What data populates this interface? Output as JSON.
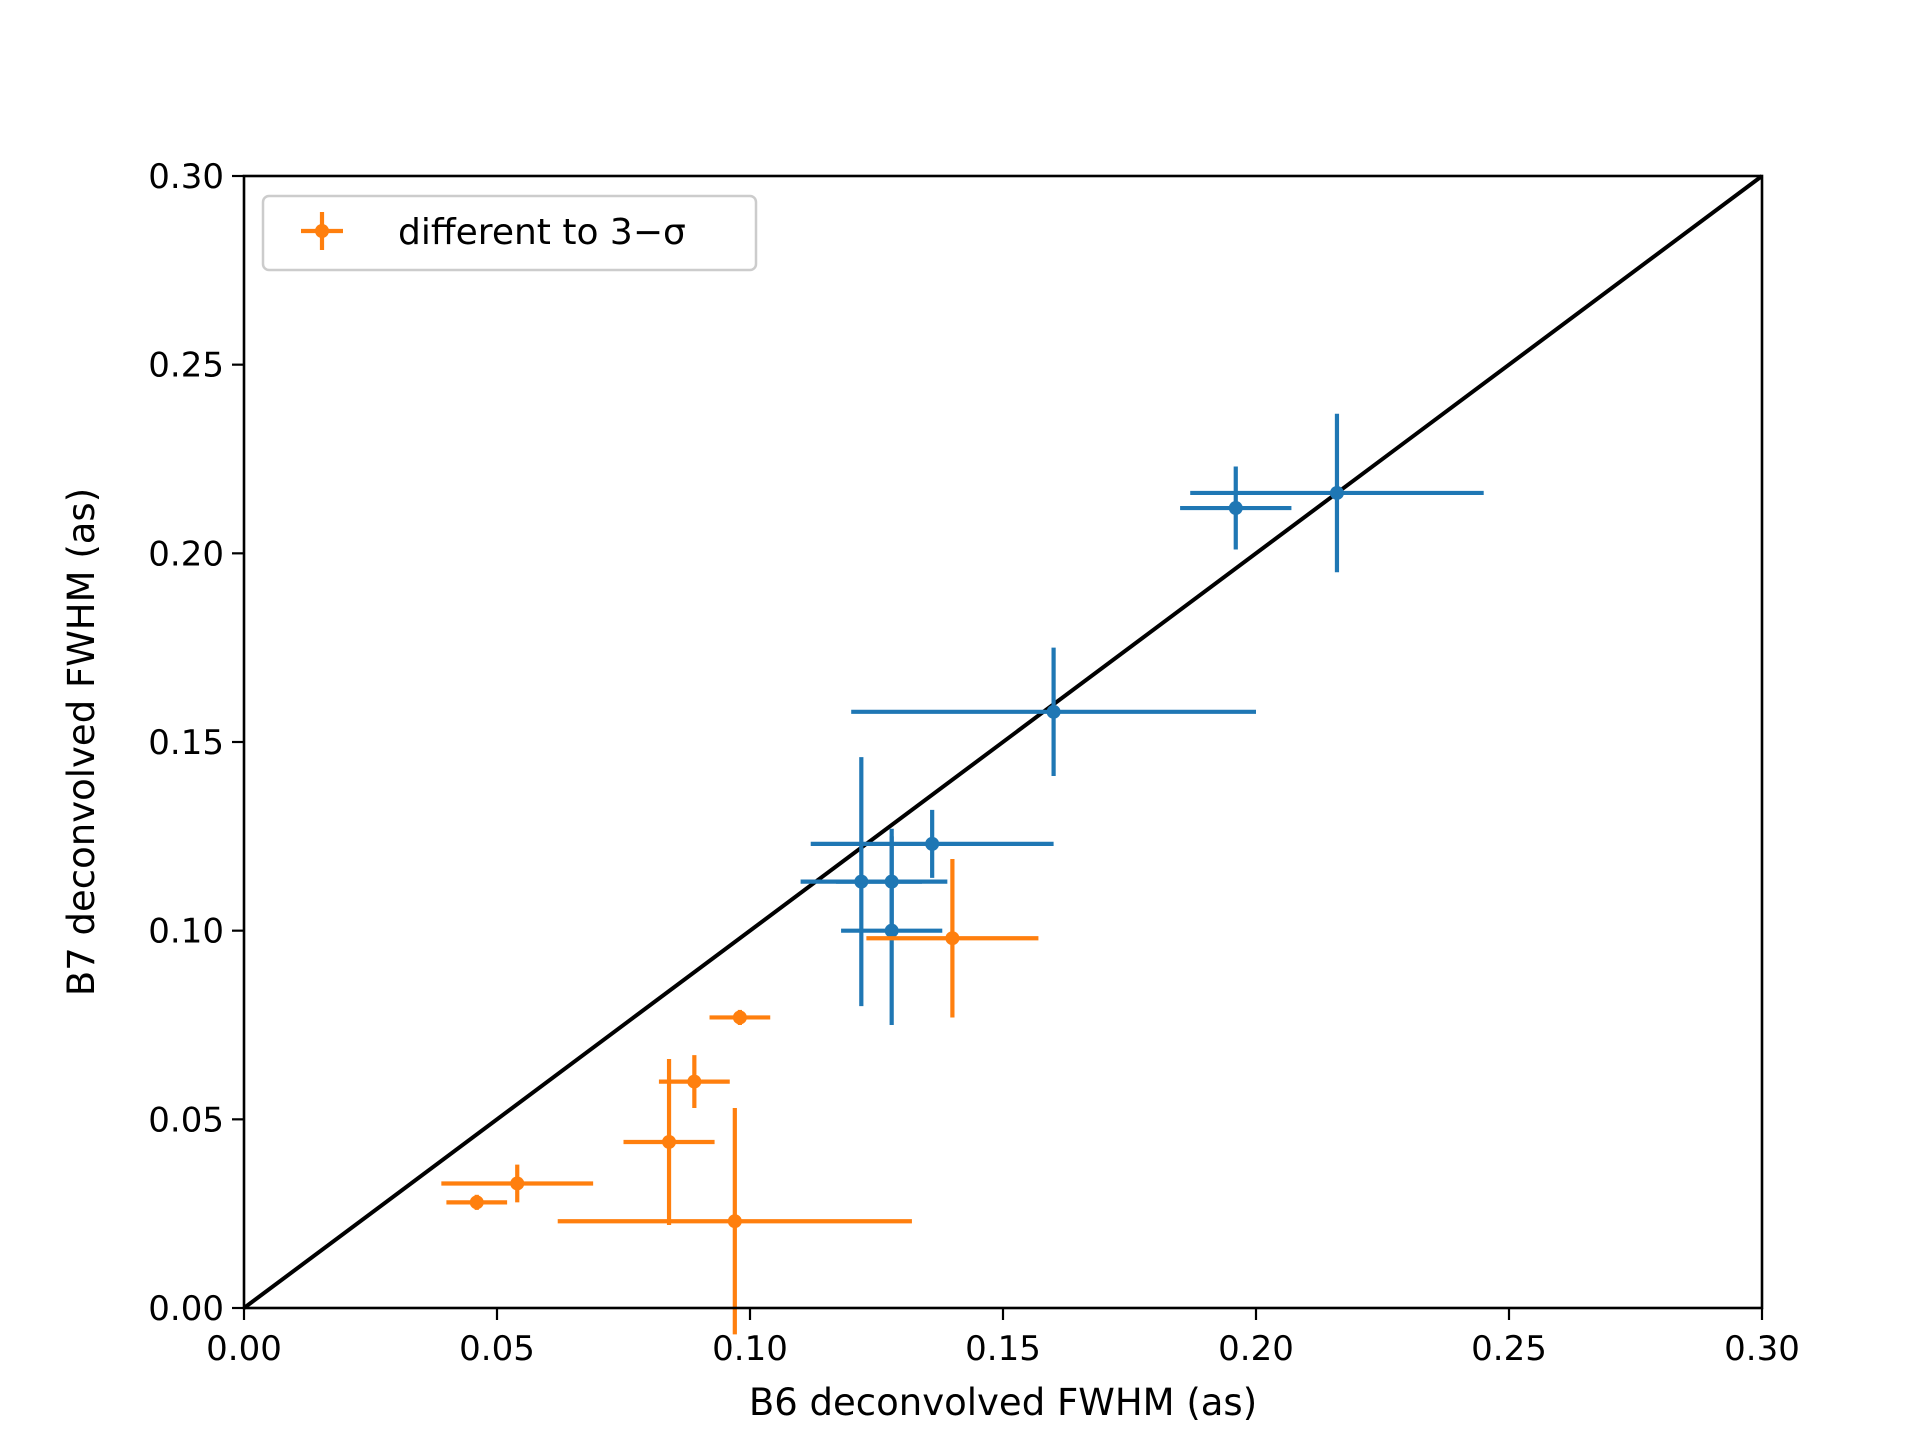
{
  "chart_data": {
    "type": "scatter",
    "title": "",
    "xlabel": "B6 deconvolved FWHM (as)",
    "ylabel": "B7 deconvolved FWHM (as)",
    "xlim": [
      0.0,
      0.3
    ],
    "ylim": [
      0.0,
      0.3
    ],
    "x_ticks": [
      "0.00",
      "0.05",
      "0.10",
      "0.15",
      "0.20",
      "0.25",
      "0.30"
    ],
    "y_ticks": [
      "0.00",
      "0.05",
      "0.10",
      "0.15",
      "0.20",
      "0.25",
      "0.30"
    ],
    "grid": false,
    "legend_position": "top-left",
    "reference_line": {
      "x": [
        0.0,
        0.3
      ],
      "y": [
        0.0,
        0.3
      ],
      "color": "#000000"
    },
    "series": [
      {
        "color": "#1f77b4",
        "points": [
          {
            "x": 0.216,
            "y": 0.216,
            "xerr": 0.029,
            "yerr": 0.021
          },
          {
            "x": 0.196,
            "y": 0.212,
            "xerr": 0.011,
            "yerr": 0.011
          },
          {
            "x": 0.16,
            "y": 0.158,
            "xerr": 0.04,
            "yerr": 0.017
          },
          {
            "x": 0.136,
            "y": 0.123,
            "xerr": 0.024,
            "yerr": 0.009
          },
          {
            "x": 0.122,
            "y": 0.113,
            "xerr": 0.012,
            "yerr": 0.033
          },
          {
            "x": 0.128,
            "y": 0.113,
            "xerr": 0.011,
            "yerr": 0.014
          },
          {
            "x": 0.128,
            "y": 0.1,
            "xerr": 0.01,
            "yerr": 0.025
          }
        ]
      },
      {
        "name": "different to 3−σ",
        "color": "#ff7f0e",
        "points": [
          {
            "x": 0.14,
            "y": 0.098,
            "xerr": 0.017,
            "yerr": 0.021
          },
          {
            "x": 0.098,
            "y": 0.077,
            "xerr": 0.006,
            "yerr": 0.002
          },
          {
            "x": 0.089,
            "y": 0.06,
            "xerr": 0.007,
            "yerr": 0.007
          },
          {
            "x": 0.084,
            "y": 0.044,
            "xerr": 0.009,
            "yerr": 0.022
          },
          {
            "x": 0.054,
            "y": 0.033,
            "xerr": 0.015,
            "yerr": 0.005
          },
          {
            "x": 0.046,
            "y": 0.028,
            "xerr": 0.006,
            "yerr": 0.002
          },
          {
            "x": 0.097,
            "y": 0.023,
            "xerr": 0.035,
            "yerr": 0.03
          }
        ]
      }
    ]
  }
}
